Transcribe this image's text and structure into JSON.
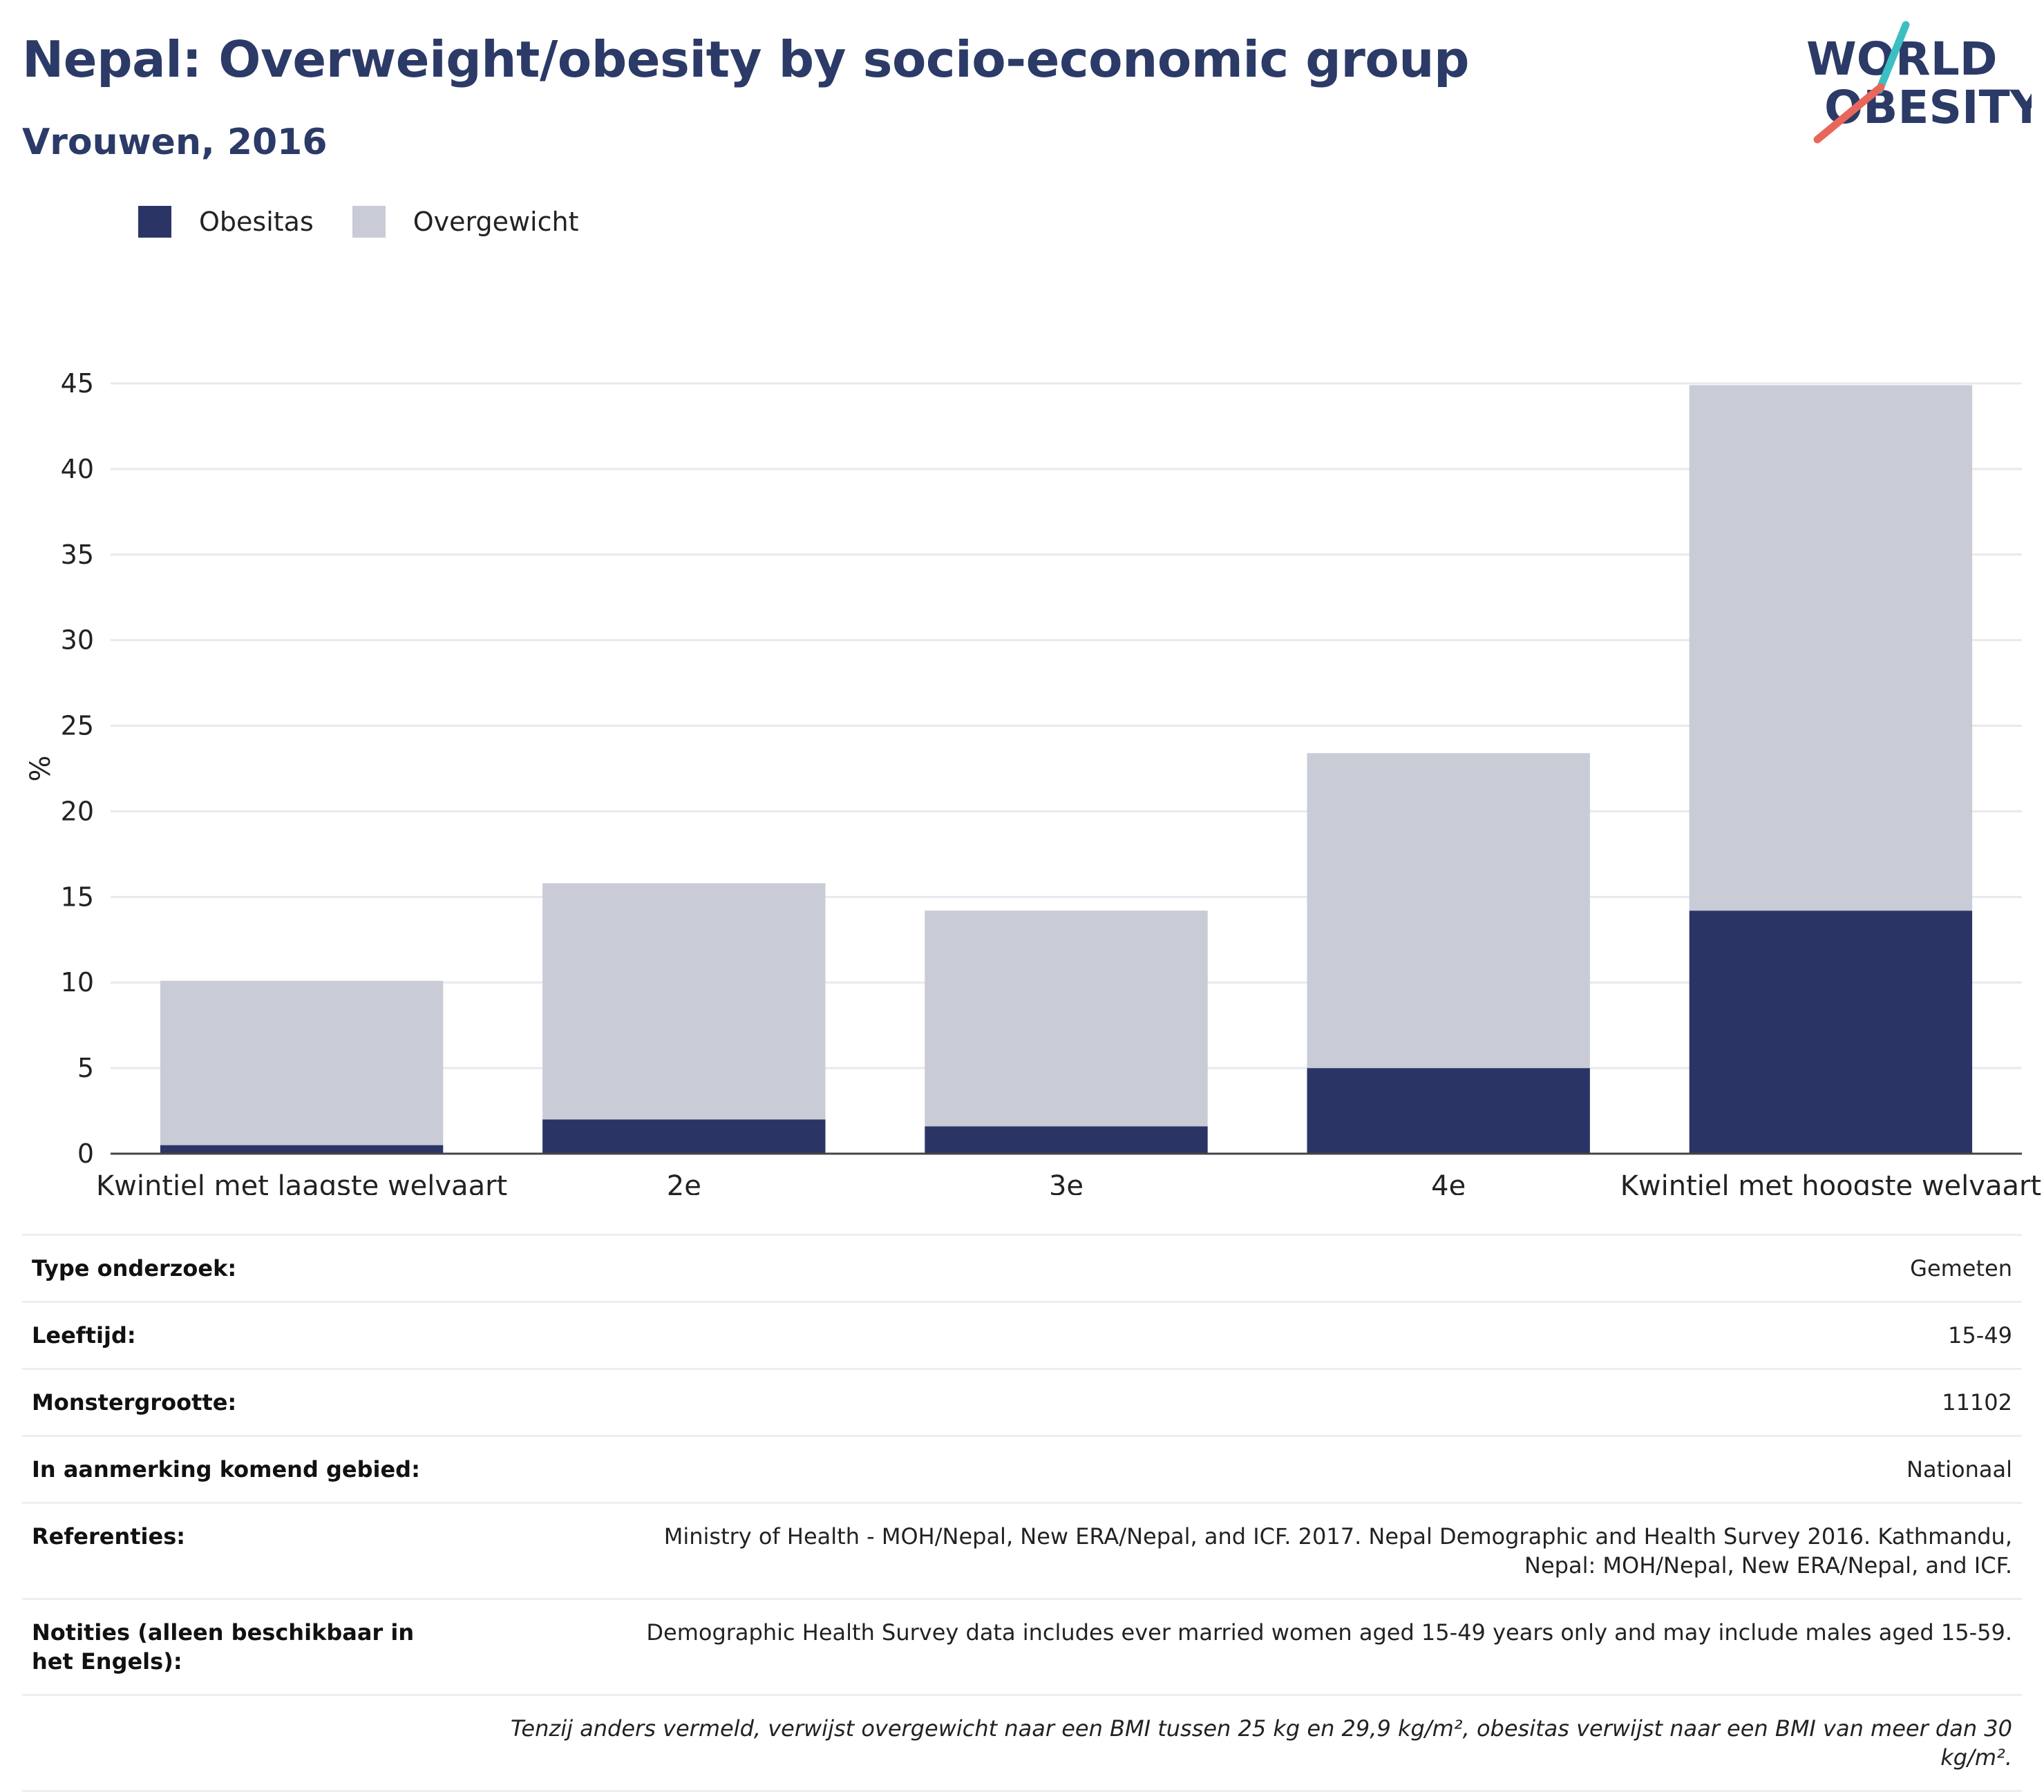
{
  "header": {
    "title": "Nepal: Overweight/obesity by socio-economic group",
    "subtitle": "Vrouwen, 2016"
  },
  "logo": {
    "line1": "WORLD",
    "line2": "OBESITY"
  },
  "colors": {
    "obesity": "#2b3565",
    "overweight": "#c9cbd6",
    "title": "#2b3a67",
    "logo_teal": "#3bbfc2",
    "logo_red": "#e8675a"
  },
  "legend": [
    {
      "label": "Obesitas",
      "color": "#2b3565"
    },
    {
      "label": "Overgewicht",
      "color": "#c9cbd6"
    }
  ],
  "chart_data": {
    "type": "bar",
    "stacked": true,
    "categories": [
      "Kwintiel met laagste welvaart",
      "2e",
      "3e",
      "4e",
      "Kwintiel met hoogste welvaart"
    ],
    "series": [
      {
        "name": "Obesitas",
        "values": [
          0.5,
          2.0,
          1.6,
          5.0,
          14.2
        ]
      },
      {
        "name": "Overgewicht",
        "values": [
          9.6,
          13.8,
          12.6,
          18.4,
          30.7
        ]
      }
    ],
    "ylabel": "%",
    "ylim": [
      0,
      45
    ],
    "yticks": [
      0,
      5,
      10,
      15,
      20,
      25,
      30,
      35,
      40,
      45
    ],
    "grid": true,
    "legend_position": "top-left"
  },
  "info": [
    {
      "key": "Type onderzoek:",
      "value": "Gemeten"
    },
    {
      "key": "Leeftijd:",
      "value": "15-49"
    },
    {
      "key": "Monstergrootte:",
      "value": "11102"
    },
    {
      "key": "In aanmerking komend gebied:",
      "value": "Nationaal"
    },
    {
      "key": "Referenties:",
      "value": "Ministry of Health - MOH/Nepal, New ERA/Nepal, and ICF. 2017. Nepal Demographic and Health Survey 2016. Kathmandu, Nepal: MOH/Nepal, New ERA/Nepal, and ICF."
    },
    {
      "key": "Notities (alleen beschikbaar in het Engels):",
      "value": "Demographic Health Survey data includes ever married women aged 15-49 years only and may include males aged 15-59."
    }
  ],
  "footnote": "Tenzij anders vermeld, verwijst overgewicht naar een BMI tussen 25 kg en 29,9 kg/m², obesitas verwijst naar een BMI van meer dan 30 kg/m²."
}
